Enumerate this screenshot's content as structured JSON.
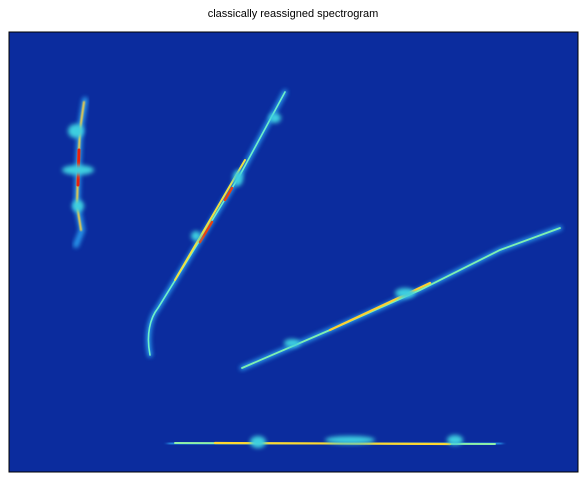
{
  "chart_data": {
    "type": "spectrogram",
    "title": "classically reassigned spectrogram",
    "background_color": "#0b2c9e"
  }
}
